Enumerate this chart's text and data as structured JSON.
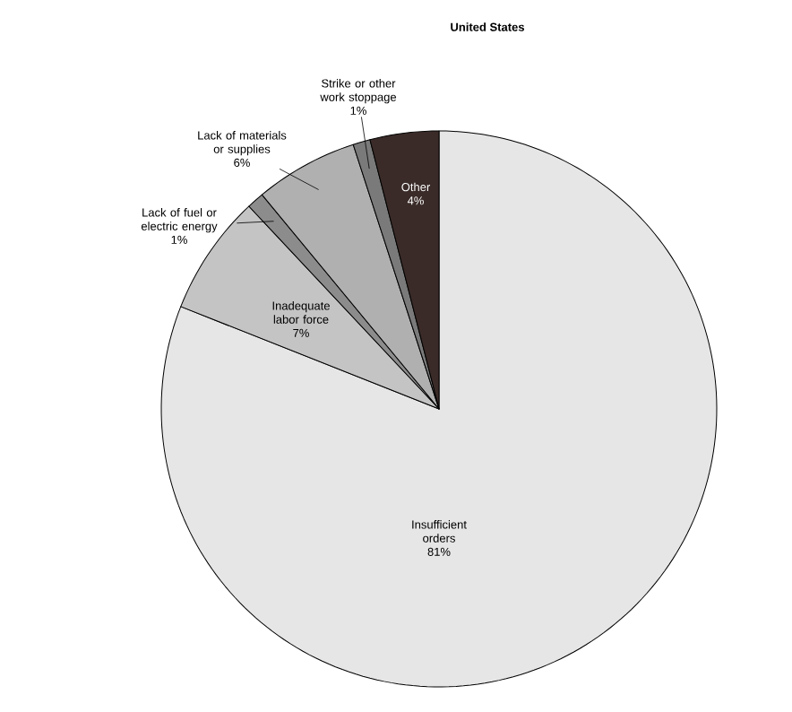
{
  "chart_data": {
    "type": "pie",
    "title": "United States",
    "categories": [
      "Insufficient orders",
      "Inadequate labor force",
      "Lack of fuel or electric energy",
      "Lack of materials or supplies",
      "Strike or other work stoppage",
      "Other"
    ],
    "values": [
      81,
      7,
      1,
      6,
      1,
      4
    ],
    "value_labels": [
      "81%",
      "7%",
      "1%",
      "6%",
      "1%",
      "4%"
    ],
    "colors": [
      "#e6e6e6",
      "#c4c4c4",
      "#8c8c8c",
      "#b0b0b0",
      "#7a7a7a",
      "#3a2b28"
    ]
  }
}
